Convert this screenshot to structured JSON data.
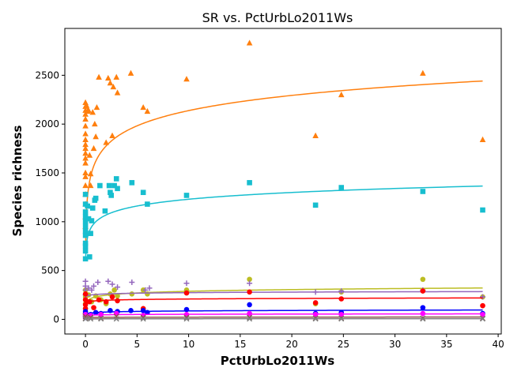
{
  "chart_data": {
    "type": "scatter",
    "title": "SR vs. PctUrbLo2011Ws",
    "xlabel": "PctUrbLo2011Ws",
    "ylabel": "Species richness",
    "xlim": [
      -2.0,
      40.3
    ],
    "ylim": [
      -150,
      2980
    ],
    "xticks": [
      0,
      5,
      10,
      15,
      20,
      25,
      30,
      35,
      40
    ],
    "yticks": [
      0,
      500,
      1000,
      1500,
      2000,
      2500
    ],
    "x_tick_labels": [
      "0",
      "5",
      "10",
      "15",
      "20",
      "25",
      "30",
      "35",
      "40"
    ],
    "y_tick_labels": [
      "0",
      "500",
      "1000",
      "1500",
      "2000",
      "2500"
    ],
    "grid": false,
    "legend": "none",
    "series": [
      {
        "color": "#ff7f0e",
        "marker": "triangle",
        "fit": {
          "kind": "log",
          "a": 1620,
          "b": 225,
          "x0": 0.02
        },
        "points": [
          [
            0,
            2220
          ],
          [
            0,
            2180
          ],
          [
            0,
            2140
          ],
          [
            0,
            2100
          ],
          [
            0,
            2050
          ],
          [
            0,
            1980
          ],
          [
            0,
            1900
          ],
          [
            0,
            1840
          ],
          [
            0,
            1790
          ],
          [
            0,
            1750
          ],
          [
            0,
            1700
          ],
          [
            0,
            1650
          ],
          [
            0,
            1600
          ],
          [
            0,
            1500
          ],
          [
            0,
            1460
          ],
          [
            0,
            1370
          ],
          [
            0,
            1280
          ],
          [
            0,
            1180
          ],
          [
            0,
            1050
          ],
          [
            0,
            950
          ],
          [
            0.1,
            2190
          ],
          [
            0.2,
            2130
          ],
          [
            0.3,
            2140
          ],
          [
            0.4,
            1680
          ],
          [
            0.5,
            1490
          ],
          [
            0.5,
            1370
          ],
          [
            0.7,
            2120
          ],
          [
            0.8,
            1750
          ],
          [
            0.9,
            2000
          ],
          [
            1.0,
            1870
          ],
          [
            1.1,
            2170
          ],
          [
            1.3,
            2480
          ],
          [
            2.0,
            1810
          ],
          [
            2.2,
            2470
          ],
          [
            2.4,
            2420
          ],
          [
            2.6,
            1880
          ],
          [
            2.7,
            2380
          ],
          [
            3.0,
            2480
          ],
          [
            3.1,
            2320
          ],
          [
            4.4,
            2520
          ],
          [
            5.6,
            2170
          ],
          [
            6.0,
            2130
          ],
          [
            9.8,
            2460
          ],
          [
            15.9,
            2830
          ],
          [
            22.3,
            1880
          ],
          [
            24.8,
            2300
          ],
          [
            32.7,
            2520
          ],
          [
            38.5,
            1840
          ]
        ]
      },
      {
        "color": "#17becf",
        "marker": "square",
        "fit": {
          "kind": "log",
          "a": 1000,
          "b": 100,
          "x0": 0.02
        },
        "points": [
          [
            0,
            1280
          ],
          [
            0,
            1180
          ],
          [
            0,
            1100
          ],
          [
            0,
            1050
          ],
          [
            0,
            1000
          ],
          [
            0,
            950
          ],
          [
            0,
            900
          ],
          [
            0,
            860
          ],
          [
            0,
            780
          ],
          [
            0,
            750
          ],
          [
            0,
            700
          ],
          [
            0,
            620
          ],
          [
            0.2,
            1160
          ],
          [
            0.3,
            1030
          ],
          [
            0.4,
            640
          ],
          [
            0.5,
            880
          ],
          [
            0.6,
            1010
          ],
          [
            0.7,
            1140
          ],
          [
            0.9,
            1220
          ],
          [
            1.0,
            1240
          ],
          [
            1.4,
            1370
          ],
          [
            1.9,
            1110
          ],
          [
            2.3,
            1370
          ],
          [
            2.4,
            1300
          ],
          [
            2.5,
            1270
          ],
          [
            2.8,
            1370
          ],
          [
            3.0,
            1440
          ],
          [
            3.1,
            1340
          ],
          [
            4.5,
            1400
          ],
          [
            5.6,
            1300
          ],
          [
            6.0,
            1180
          ],
          [
            9.8,
            1270
          ],
          [
            15.9,
            1400
          ],
          [
            22.3,
            1170
          ],
          [
            24.8,
            1350
          ],
          [
            32.7,
            1310
          ],
          [
            38.5,
            1120
          ]
        ]
      },
      {
        "color": "#bcbd22",
        "marker": "circle",
        "fit": {
          "kind": "log",
          "a": 230,
          "b": 25,
          "x0": 0.02
        },
        "points": [
          [
            0,
            300
          ],
          [
            0,
            230
          ],
          [
            0,
            160
          ],
          [
            0,
            110
          ],
          [
            0,
            60
          ],
          [
            0.3,
            250
          ],
          [
            0.6,
            180
          ],
          [
            1.0,
            240
          ],
          [
            1.5,
            200
          ],
          [
            2.0,
            160
          ],
          [
            2.4,
            260
          ],
          [
            2.8,
            300
          ],
          [
            3.1,
            240
          ],
          [
            4.5,
            260
          ],
          [
            5.6,
            300
          ],
          [
            6.0,
            260
          ],
          [
            9.8,
            300
          ],
          [
            15.9,
            410
          ],
          [
            22.3,
            160
          ],
          [
            24.8,
            280
          ],
          [
            32.7,
            410
          ],
          [
            38.5,
            230
          ]
        ]
      },
      {
        "color": "#9467bd",
        "marker": "plus",
        "fit": {
          "kind": "log",
          "a": 255,
          "b": 8,
          "x0": 0.02
        },
        "points": [
          [
            0,
            390
          ],
          [
            0,
            340
          ],
          [
            0,
            300
          ],
          [
            0,
            250
          ],
          [
            0.3,
            320
          ],
          [
            0.6,
            300
          ],
          [
            0.8,
            340
          ],
          [
            1.2,
            380
          ],
          [
            2.2,
            390
          ],
          [
            2.6,
            360
          ],
          [
            3.1,
            330
          ],
          [
            4.5,
            380
          ],
          [
            5.8,
            300
          ],
          [
            6.2,
            320
          ],
          [
            9.8,
            370
          ],
          [
            15.9,
            370
          ],
          [
            22.3,
            280
          ],
          [
            24.8,
            290
          ],
          [
            32.7,
            300
          ],
          [
            38.5,
            230
          ]
        ]
      },
      {
        "color": "#ff0000",
        "marker": "circle",
        "fit": {
          "kind": "log",
          "a": 190,
          "b": 8,
          "x0": 0.02
        },
        "points": [
          [
            0,
            260
          ],
          [
            0,
            200
          ],
          [
            0,
            150
          ],
          [
            0,
            110
          ],
          [
            0,
            60
          ],
          [
            0.4,
            180
          ],
          [
            0.8,
            120
          ],
          [
            1.3,
            200
          ],
          [
            2.0,
            180
          ],
          [
            2.6,
            230
          ],
          [
            3.1,
            190
          ],
          [
            5.6,
            110
          ],
          [
            9.8,
            270
          ],
          [
            15.9,
            280
          ],
          [
            22.3,
            170
          ],
          [
            24.8,
            210
          ],
          [
            32.7,
            290
          ],
          [
            38.5,
            140
          ]
        ]
      },
      {
        "color": "#0000ff",
        "marker": "circle",
        "fit": {
          "kind": "log",
          "a": 70,
          "b": 7,
          "x0": 0.02
        },
        "points": [
          [
            0,
            80
          ],
          [
            0,
            60
          ],
          [
            0,
            40
          ],
          [
            0,
            20
          ],
          [
            0.5,
            50
          ],
          [
            1.0,
            70
          ],
          [
            1.5,
            60
          ],
          [
            2.4,
            90
          ],
          [
            3.1,
            80
          ],
          [
            4.4,
            90
          ],
          [
            5.6,
            90
          ],
          [
            6.0,
            70
          ],
          [
            9.8,
            100
          ],
          [
            15.9,
            150
          ],
          [
            22.3,
            60
          ],
          [
            24.8,
            70
          ],
          [
            32.7,
            120
          ],
          [
            38.5,
            60
          ]
        ]
      },
      {
        "color": "#ff00ff",
        "marker": "circle",
        "fit": {
          "kind": "log",
          "a": 45,
          "b": 3,
          "x0": 0.02
        },
        "points": [
          [
            0,
            50
          ],
          [
            0,
            30
          ],
          [
            0.5,
            40
          ],
          [
            1.5,
            50
          ],
          [
            3.0,
            60
          ],
          [
            5.6,
            40
          ],
          [
            9.8,
            50
          ],
          [
            15.9,
            60
          ],
          [
            22.3,
            50
          ],
          [
            24.8,
            50
          ],
          [
            32.7,
            60
          ],
          [
            38.5,
            50
          ]
        ]
      },
      {
        "color": "#8c564b",
        "marker": "x",
        "fit": {
          "kind": "log",
          "a": 20,
          "b": 1,
          "x0": 0.02
        },
        "points": [
          [
            0,
            30
          ],
          [
            0,
            10
          ],
          [
            0.5,
            20
          ],
          [
            1.5,
            10
          ],
          [
            3.0,
            30
          ],
          [
            5.6,
            20
          ],
          [
            9.8,
            20
          ],
          [
            15.9,
            20
          ],
          [
            22.3,
            10
          ],
          [
            24.8,
            10
          ],
          [
            32.7,
            10
          ],
          [
            38.5,
            10
          ]
        ]
      },
      {
        "color": "#7f7f7f",
        "marker": "x",
        "fit": {
          "kind": "log",
          "a": 5,
          "b": 0.5,
          "x0": 0.02
        },
        "points": [
          [
            0,
            5
          ],
          [
            0.5,
            5
          ],
          [
            1.5,
            5
          ],
          [
            3.0,
            5
          ],
          [
            5.6,
            5
          ],
          [
            9.8,
            5
          ],
          [
            15.9,
            5
          ],
          [
            22.3,
            5
          ],
          [
            24.8,
            5
          ],
          [
            32.7,
            5
          ],
          [
            38.5,
            5
          ]
        ]
      }
    ]
  }
}
